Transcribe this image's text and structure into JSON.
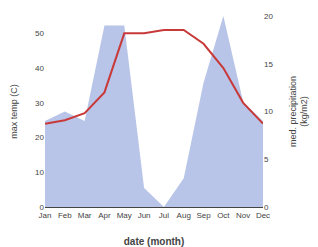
{
  "chart_data": {
    "type": "line",
    "categories": [
      "Jan",
      "Feb",
      "Mar",
      "Apr",
      "May",
      "Jun",
      "Jul",
      "Aug",
      "Sep",
      "Oct",
      "Nov",
      "Dec"
    ],
    "series": [
      {
        "type": "area",
        "color": "#b8c4e8",
        "axis": "y2",
        "values": [
          9,
          10,
          9,
          19,
          19,
          2,
          0,
          3,
          13,
          20,
          11,
          9
        ]
      },
      {
        "type": "line",
        "color": "#c83a3a",
        "values": [
          24,
          25,
          27,
          33,
          50,
          50,
          51,
          51,
          47,
          40,
          30,
          24
        ]
      }
    ],
    "xlabel": "date (month)",
    "ylabel": "max temp (C)",
    "y2label": "med. precipitation\n(kg/m2)",
    "ylim": [
      0,
      55
    ],
    "yticks": [
      0,
      10,
      20,
      30,
      40,
      50
    ],
    "y2lim": [
      0,
      20
    ],
    "y2ticks": [
      0,
      5,
      10,
      15,
      20
    ],
    "grid": false
  }
}
